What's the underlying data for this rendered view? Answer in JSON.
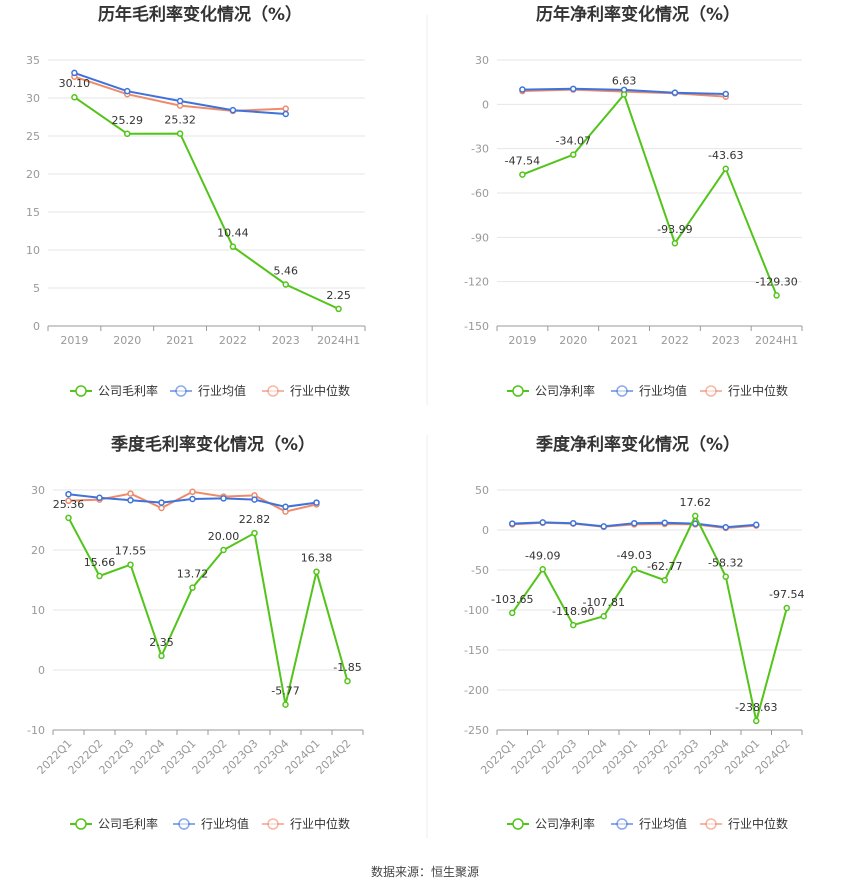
{
  "footer": {
    "source": "数据来源：恒生聚源"
  },
  "colors": {
    "company": "#52c41a",
    "industry_avg": "#3f73d9",
    "industry_median": "#ef8a6a",
    "grid": "#e6e6e6",
    "axis": "#999999"
  },
  "chart_data": [
    {
      "type": "line",
      "title": "历年毛利率变化情况（%）",
      "categories": [
        "2019",
        "2020",
        "2021",
        "2022",
        "2023",
        "2024H1"
      ],
      "ylim": [
        0,
        35
      ],
      "yticks": [
        0,
        5,
        10,
        15,
        20,
        25,
        30,
        35
      ],
      "grid": true,
      "legend_position": "bottom",
      "series": [
        {
          "name": "公司毛利率",
          "values": [
            30.1,
            25.29,
            25.32,
            10.44,
            5.46,
            2.25
          ],
          "labels": [
            "30.10",
            "25.29",
            "25.32",
            "10.44",
            "5.46",
            "2.25"
          ]
        },
        {
          "name": "行业均值",
          "values": [
            33.3,
            30.9,
            29.6,
            28.4,
            27.9,
            null
          ]
        },
        {
          "name": "行业中位数",
          "values": [
            32.8,
            30.5,
            29.0,
            28.3,
            28.6,
            null
          ]
        }
      ]
    },
    {
      "type": "line",
      "title": "历年净利率变化情况（%）",
      "categories": [
        "2019",
        "2020",
        "2021",
        "2022",
        "2023",
        "2024H1"
      ],
      "ylim": [
        -150,
        30
      ],
      "yticks": [
        -150,
        -120,
        -90,
        -60,
        -30,
        0,
        30
      ],
      "grid": true,
      "legend_position": "bottom",
      "series": [
        {
          "name": "公司净利率",
          "values": [
            -47.54,
            -34.07,
            6.63,
            -93.99,
            -43.63,
            -129.3
          ],
          "labels": [
            "-47.54",
            "-34.07",
            "6.63",
            "-93.99",
            "-43.63",
            "-129.30"
          ]
        },
        {
          "name": "行业均值",
          "values": [
            10.0,
            10.5,
            9.8,
            7.9,
            7.0,
            null
          ]
        },
        {
          "name": "行业中位数",
          "values": [
            9.0,
            10.0,
            8.6,
            7.5,
            5.2,
            null
          ]
        }
      ]
    },
    {
      "type": "line",
      "title": "季度毛利率变化情况（%）",
      "categories": [
        "2022Q1",
        "2022Q2",
        "2022Q3",
        "2022Q4",
        "2023Q1",
        "2023Q2",
        "2023Q3",
        "2023Q4",
        "2024Q1",
        "2024Q2"
      ],
      "ylim": [
        -10,
        30
      ],
      "yticks": [
        -10,
        0,
        10,
        20,
        30
      ],
      "grid": true,
      "legend_position": "bottom",
      "series": [
        {
          "name": "公司毛利率",
          "values": [
            25.36,
            15.66,
            17.55,
            2.35,
            13.72,
            20.0,
            22.82,
            -5.77,
            16.38,
            -1.85
          ],
          "labels": [
            "25.36",
            "15.66",
            "17.55",
            "2.35",
            "13.72",
            "20.00",
            "22.82",
            "-5.77",
            "16.38",
            "-1.85"
          ]
        },
        {
          "name": "行业均值",
          "values": [
            29.3,
            28.7,
            28.3,
            27.9,
            28.5,
            28.6,
            28.4,
            27.2,
            27.9,
            null
          ]
        },
        {
          "name": "行业中位数",
          "values": [
            28.2,
            28.4,
            29.4,
            27.0,
            29.7,
            28.9,
            29.1,
            26.4,
            27.6,
            null
          ]
        }
      ]
    },
    {
      "type": "line",
      "title": "季度净利率变化情况（%）",
      "categories": [
        "2022Q1",
        "2022Q2",
        "2022Q3",
        "2022Q4",
        "2023Q1",
        "2023Q2",
        "2023Q3",
        "2023Q4",
        "2024Q1",
        "2024Q2"
      ],
      "ylim": [
        -250,
        50
      ],
      "yticks": [
        -250,
        -200,
        -150,
        -100,
        -50,
        0,
        50
      ],
      "grid": true,
      "legend_position": "bottom",
      "series": [
        {
          "name": "公司净利率",
          "values": [
            -103.65,
            -49.09,
            -118.9,
            -107.81,
            -49.03,
            -62.77,
            17.62,
            -58.32,
            -238.63,
            -97.54
          ],
          "labels": [
            "-103.65",
            "-49.09",
            "-118.90",
            "-107.81",
            "-49.03",
            "-62.77",
            "17.62",
            "-58.32",
            "-238.63",
            "-97.54"
          ]
        },
        {
          "name": "行业均值",
          "values": [
            8.0,
            9.5,
            8.5,
            4.5,
            8.5,
            9.0,
            8.0,
            3.5,
            6.5,
            null
          ]
        },
        {
          "name": "行业中位数",
          "values": [
            7.0,
            9.0,
            8.0,
            4.0,
            7.0,
            7.5,
            7.0,
            2.5,
            5.5,
            null
          ]
        }
      ]
    }
  ]
}
